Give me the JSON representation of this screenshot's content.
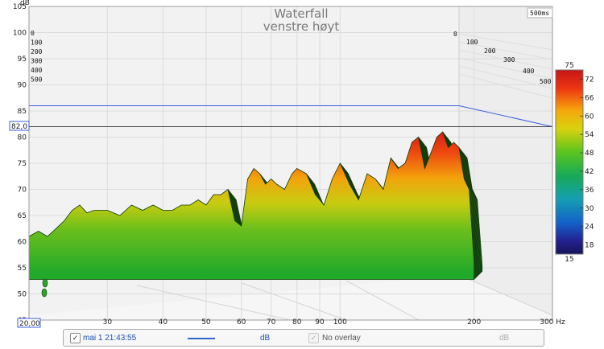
{
  "chart_data": {
    "type": "waterfall",
    "title": "Waterfall",
    "subtitle": "venstre høyt",
    "xlabel": "Hz",
    "ylabel": "dB",
    "x_scale": "log",
    "xlim": [
      20,
      300
    ],
    "ylim": [
      45,
      105
    ],
    "x_ticks": [
      "30",
      "40",
      "50",
      "60",
      "70",
      "80",
      "90",
      "100",
      "200",
      "300 Hz"
    ],
    "y_ticks": [
      "45",
      "50",
      "55",
      "60",
      "65",
      "70",
      "75",
      "80",
      "85",
      "90",
      "95",
      "100",
      "105"
    ],
    "x_readout": "20,00",
    "y_readout": "82,0",
    "time_window": "500ms",
    "time_slices_left": [
      "0",
      "100",
      "200",
      "300",
      "400",
      "500"
    ],
    "time_slices_right": [
      "0",
      "100",
      "200",
      "300",
      "400",
      "500"
    ],
    "colorscale": {
      "min": 15,
      "max": 75,
      "ticks": [
        "75",
        "72",
        "66",
        "60",
        "54",
        "48",
        "42",
        "36",
        "30",
        "24",
        "18",
        "15"
      ]
    },
    "reference_line_db": 86,
    "front_slice": {
      "freq": [
        20,
        21,
        22,
        23,
        24,
        25,
        26,
        27,
        28,
        30,
        32,
        34,
        36,
        38,
        40,
        42,
        44,
        46,
        48,
        50,
        52,
        54,
        56,
        58,
        60,
        62,
        64,
        66,
        68,
        70,
        72,
        75,
        78,
        80,
        84,
        88,
        92,
        96,
        100,
        105,
        110,
        115,
        120,
        125,
        130,
        135,
        140,
        145,
        150,
        155,
        160,
        165,
        170,
        175,
        180,
        185,
        190,
        195,
        200
      ],
      "db": [
        61,
        62,
        61,
        62.5,
        64,
        66,
        67,
        65.5,
        66,
        66,
        65,
        67,
        66,
        67,
        66,
        66,
        67,
        67,
        68,
        67,
        69,
        69,
        70,
        64,
        63,
        72,
        74,
        73,
        71,
        72,
        71,
        70,
        73,
        74,
        73,
        69,
        67,
        72,
        75,
        71,
        68,
        73,
        72,
        70,
        76,
        74,
        75,
        79,
        80,
        74,
        77,
        80,
        81,
        78,
        79,
        78,
        72,
        70,
        56
      ]
    }
  },
  "legend": {
    "measurement_name": "mai 1 21:43:55",
    "unit_label": "dB",
    "overlay_label": "No overlay",
    "overlay_unit": "dB"
  },
  "colors": {
    "trace": "#2e67c9",
    "cursor": "#555555",
    "panel_bg": "#f7f7f7"
  },
  "icons": {
    "measurement_checkbox": "checkbox-checked-icon",
    "overlay_checkbox": "checkbox-checked-icon"
  }
}
